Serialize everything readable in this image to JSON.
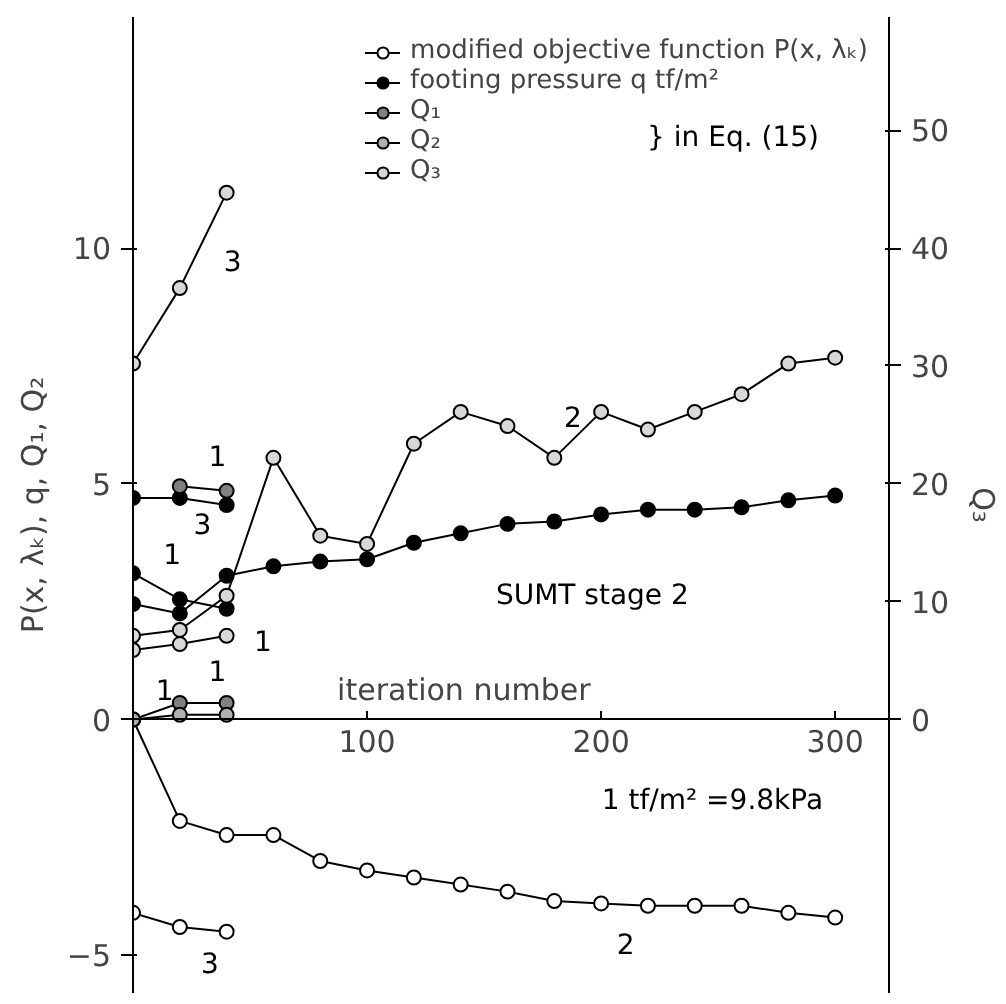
{
  "chart_data": {
    "type": "line",
    "xlabel": "iteration number",
    "ylabel": "P(x, λₖ), q, Q₁, Q₂",
    "y2label": "Q₃",
    "xlim": [
      0,
      323
    ],
    "ylim": [
      -5.8,
      14.9
    ],
    "y2lim": [
      -23.2,
      59.6
    ],
    "xticks": [
      100,
      200,
      300
    ],
    "yticks": [
      -5,
      0,
      5,
      10
    ],
    "y2ticks": [
      0,
      10,
      20,
      30,
      40,
      50
    ],
    "marker": "circle",
    "legend": "top right",
    "grid": false,
    "series": [
      {
        "name": "modified objective function P(x, λₖ)",
        "color": "#ffffff",
        "x": [
          0,
          20,
          40,
          60,
          80,
          100,
          120,
          140,
          160,
          180,
          200,
          220,
          240,
          260,
          280,
          300
        ],
        "values": [
          0,
          -2.15,
          -2.45,
          -2.45,
          -3.0,
          -3.2,
          -3.35,
          -3.5,
          -3.65,
          -3.85,
          -3.9,
          -3.95,
          -3.95,
          -3.95,
          -4.1,
          -4.2
        ]
      },
      {
        "color": "#ffffff",
        "x": [
          0,
          20,
          40
        ],
        "values": [
          -4.1,
          -4.4,
          -4.5
        ]
      },
      {
        "name": "footing pressure q tf/m²",
        "color": "#000000",
        "x": [
          0,
          20,
          40,
          60,
          80,
          100,
          120,
          140,
          160,
          180,
          200,
          220,
          240,
          260,
          280,
          300
        ],
        "values": [
          2.45,
          2.25,
          3.05,
          3.25,
          3.35,
          3.4,
          3.75,
          3.95,
          4.15,
          4.2,
          4.35,
          4.45,
          4.45,
          4.5,
          4.65,
          4.75
        ]
      },
      {
        "color": "#000000",
        "x": [
          0,
          20,
          40
        ],
        "values": [
          3.1,
          2.55,
          2.35
        ]
      },
      {
        "color": "#000000",
        "x": [
          0,
          20,
          40
        ],
        "values": [
          4.7,
          4.7,
          4.55
        ]
      },
      {
        "name": "Q₁",
        "color": "#808080",
        "x": [
          0,
          20,
          40
        ],
        "values": [
          0,
          0.35,
          0.35
        ]
      },
      {
        "name": "Q₂",
        "color": "#b0b0b0",
        "x": [
          0,
          20,
          40
        ],
        "values": [
          0,
          0.1,
          0.1
        ]
      },
      {
        "color": "#808080",
        "x": [
          20,
          40
        ],
        "values": [
          4.95,
          4.85
        ]
      },
      {
        "name": "Q₃",
        "axis": "y2",
        "color": "#d8d8d8",
        "x": [
          0,
          20,
          40,
          60,
          80,
          100,
          120,
          140,
          160,
          180,
          200,
          220,
          240,
          260,
          280,
          300
        ],
        "values": [
          7.1,
          7.6,
          10.5,
          22.2,
          15.6,
          14.9,
          23.4,
          26.1,
          24.9,
          22.2,
          26.1,
          24.6,
          26.1,
          27.6,
          30.2,
          30.7
        ]
      },
      {
        "axis": "y2",
        "color": "#d8d8d8",
        "x": [
          0,
          20,
          40
        ],
        "values": [
          5.9,
          6.4,
          7.1
        ]
      },
      {
        "axis": "y2",
        "color": "#d8d8d8",
        "x": [
          0,
          20,
          40
        ],
        "values": [
          30.2,
          36.6,
          44.7
        ]
      }
    ],
    "annotations": [
      "} in Eq. (15)",
      "1 tf/m² =9.8kPa",
      "SUMT stage 2",
      "3",
      "1",
      "3",
      "1",
      "1",
      "1",
      "1",
      "2",
      "2",
      "3"
    ]
  }
}
